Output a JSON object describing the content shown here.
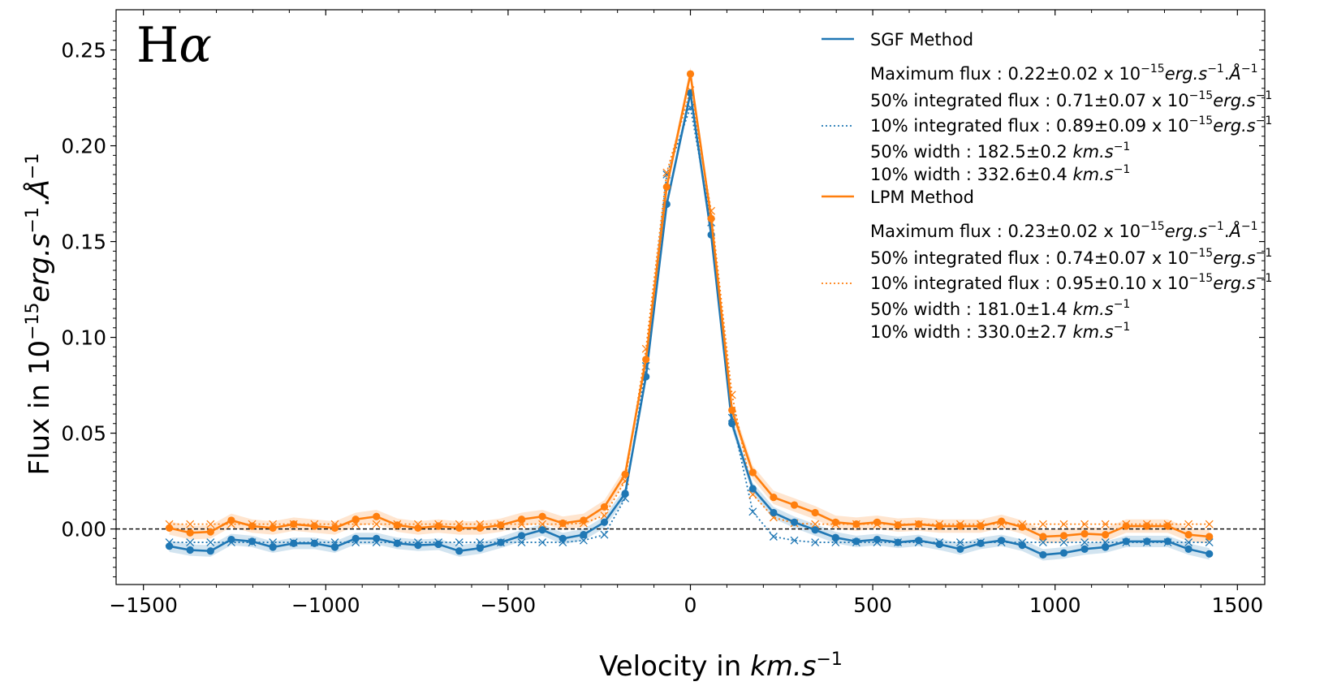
{
  "chart_data": {
    "type": "line",
    "corner_label_main": "H",
    "corner_label_greek": "α",
    "xlabel": {
      "pre": "Velocity in ",
      "italic": "km.s",
      "sup": "−1"
    },
    "ylabel": {
      "pre": "Flux in 10",
      "sup1": "−15",
      "italic": "erg.s",
      "sup2": "−1",
      "mid": ".",
      "italic2": "Å",
      "sup3": "−1"
    },
    "xlim": [
      -1575,
      1575
    ],
    "ylim": [
      -0.029,
      0.271
    ],
    "xticks": [
      -1500,
      -1000,
      -500,
      0,
      500,
      1000,
      1500
    ],
    "xtick_labels": [
      "−1500",
      "−1000",
      "−500",
      "0",
      "500",
      "1000",
      "1500"
    ],
    "yticks": [
      0.0,
      0.05,
      0.1,
      0.15,
      0.2,
      0.25
    ],
    "ytick_labels": [
      "0.00",
      "0.05",
      "0.10",
      "0.15",
      "0.20",
      "0.25"
    ],
    "zero_line": true,
    "grid": false,
    "legend_position": "top-right",
    "x": [
      -1429,
      -1372,
      -1316,
      -1259,
      -1202,
      -1145,
      -1088,
      -1031,
      -975,
      -918,
      -861,
      -804,
      -747,
      -691,
      -634,
      -577,
      -520,
      -463,
      -406,
      -350,
      -293,
      -236,
      -179,
      -122,
      -65,
      0,
      57,
      114,
      171,
      228,
      285,
      342,
      398,
      455,
      512,
      569,
      626,
      683,
      740,
      796,
      853,
      910,
      967,
      1024,
      1081,
      1138,
      1195,
      1252,
      1309,
      1366,
      1423
    ],
    "series": [
      {
        "name": "SGF Method",
        "color": "#1f77b4",
        "values": [
          -0.009,
          -0.011,
          -0.0115,
          -0.0055,
          -0.0065,
          -0.0095,
          -0.0075,
          -0.0075,
          -0.0095,
          -0.005,
          -0.005,
          -0.0075,
          -0.0085,
          -0.008,
          -0.0115,
          -0.01,
          -0.007,
          -0.0035,
          -0.0005,
          -0.005,
          -0.003,
          0.0035,
          0.0185,
          0.0795,
          0.1695,
          0.2275,
          0.1535,
          0.055,
          0.021,
          0.0085,
          0.0035,
          -0.0005,
          -0.0045,
          -0.0065,
          -0.0055,
          -0.007,
          -0.006,
          -0.008,
          -0.0105,
          -0.0075,
          -0.006,
          -0.0085,
          -0.0135,
          -0.0125,
          -0.0105,
          -0.0095,
          -0.0065,
          -0.0065,
          -0.0065,
          -0.0105,
          -0.013
        ],
        "band": 0.003,
        "fit_color": "#1f77b4",
        "fit_values": [
          -0.007,
          -0.007,
          -0.007,
          -0.007,
          -0.007,
          -0.007,
          -0.007,
          -0.007,
          -0.007,
          -0.007,
          -0.007,
          -0.007,
          -0.007,
          -0.007,
          -0.007,
          -0.007,
          -0.007,
          -0.007,
          -0.007,
          -0.007,
          -0.006,
          -0.003,
          0.016,
          0.085,
          0.185,
          0.22,
          0.16,
          0.058,
          0.009,
          -0.004,
          -0.006,
          -0.007,
          -0.007,
          -0.007,
          -0.007,
          -0.007,
          -0.007,
          -0.007,
          -0.007,
          -0.007,
          -0.007,
          -0.007,
          -0.007,
          -0.007,
          -0.007,
          -0.007,
          -0.007,
          -0.007,
          -0.007,
          -0.007,
          -0.007
        ]
      },
      {
        "name": "LPM Method",
        "color": "#ff7f0e",
        "values": [
          0.0005,
          -0.002,
          -0.0015,
          0.0045,
          0.0015,
          0.0005,
          0.0025,
          0.0015,
          0.0005,
          0.005,
          0.0065,
          0.002,
          0.0005,
          0.0015,
          0.0005,
          0.0005,
          0.002,
          0.005,
          0.0065,
          0.003,
          0.0045,
          0.0115,
          0.0285,
          0.0885,
          0.1785,
          0.2375,
          0.162,
          0.062,
          0.0295,
          0.0165,
          0.0125,
          0.0085,
          0.0035,
          0.0025,
          0.0035,
          0.002,
          0.0025,
          0.0015,
          0.0015,
          0.0015,
          0.004,
          0.001,
          -0.004,
          -0.0035,
          -0.0025,
          -0.003,
          0.0015,
          0.0015,
          0.0015,
          -0.003,
          -0.004
        ],
        "band": 0.0035,
        "fit_color": "#ff7f0e",
        "fit_values": [
          0.0025,
          0.0025,
          0.0025,
          0.0025,
          0.0025,
          0.0025,
          0.0025,
          0.0025,
          0.0025,
          0.0025,
          0.0025,
          0.0025,
          0.0025,
          0.0025,
          0.0025,
          0.0025,
          0.0025,
          0.0025,
          0.0025,
          0.0025,
          0.003,
          0.007,
          0.025,
          0.094,
          0.186,
          0.229,
          0.166,
          0.07,
          0.018,
          0.006,
          0.003,
          0.0025,
          0.0025,
          0.0025,
          0.0025,
          0.0025,
          0.0025,
          0.0025,
          0.0025,
          0.0025,
          0.0025,
          0.0025,
          0.0025,
          0.0025,
          0.0025,
          0.0025,
          0.0025,
          0.0025,
          0.0025,
          0.0025,
          0.0025
        ]
      }
    ],
    "legend": [
      {
        "method": "SGF Method",
        "color": "#1f77b4",
        "lines": [
          {
            "pre": "Maximum flux : 0.22±0.02 x 10",
            "sup": "−15",
            "italic": "erg.s",
            "sup2": "−1",
            "mid": ".",
            "italic2": "Å",
            "sup3": "−1"
          },
          {
            "pre": "50% integrated flux : 0.71±0.07 x 10",
            "sup": "−15",
            "italic": "erg.s",
            "sup2": "−1"
          },
          {
            "pre": "10% integrated flux : 0.89±0.09 x 10",
            "sup": "−15",
            "italic": "erg.s",
            "sup2": "−1"
          },
          {
            "pre": "50% width : 182.5±0.2 ",
            "italic": "km.s",
            "sup2": "−1"
          },
          {
            "pre": "10% width : 332.6±0.4 ",
            "italic": "km.s",
            "sup2": "−1"
          }
        ]
      },
      {
        "method": "LPM Method",
        "color": "#ff7f0e",
        "lines": [
          {
            "pre": "Maximum flux : 0.23±0.02 x 10",
            "sup": "−15",
            "italic": "erg.s",
            "sup2": "−1",
            "mid": ".",
            "italic2": "Å",
            "sup3": "−1"
          },
          {
            "pre": "50% integrated flux : 0.74±0.07 x 10",
            "sup": "−15",
            "italic": "erg.s",
            "sup2": "−1"
          },
          {
            "pre": "10% integrated flux : 0.95±0.10 x 10",
            "sup": "−15",
            "italic": "erg.s",
            "sup2": "−1"
          },
          {
            "pre": "50% width : 181.0±1.4 ",
            "italic": "km.s",
            "sup2": "−1"
          },
          {
            "pre": "10% width : 330.0±2.7 ",
            "italic": "km.s",
            "sup2": "−1"
          }
        ]
      }
    ]
  }
}
